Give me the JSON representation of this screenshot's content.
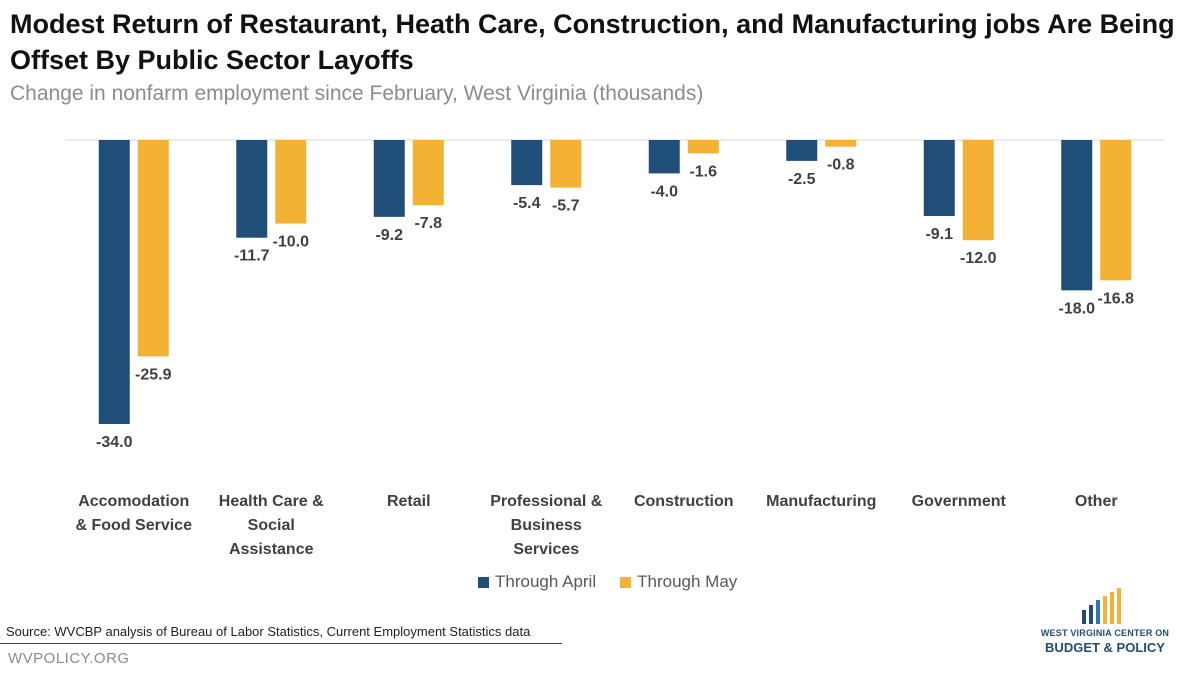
{
  "title": "Modest Return of Restaurant, Heath Care, Construction, and Manufacturing jobs Are Being Offset By Public Sector Layoffs",
  "subtitle": "Change in nonfarm employment since February, West Virginia (thousands)",
  "source": "Source:  WVCBP analysis of Bureau of Labor Statistics, Current Employment  Statistics data",
  "website": "WVPOLICY.ORG",
  "logo": {
    "line1": "WEST VIRGINIA CENTER ON",
    "line2": "BUDGET & POLICY",
    "icon": "rising-bars-logo-icon"
  },
  "colors": {
    "through_april": "#1f4e79",
    "through_may": "#f4b235"
  },
  "legend": {
    "through_april": "Through April",
    "through_may": "Through May"
  },
  "chart_data": {
    "type": "bar",
    "categories": [
      [
        "Accomodation",
        "& Food Service"
      ],
      [
        "Health Care &",
        "Social",
        "Assistance"
      ],
      [
        "Retail"
      ],
      [
        "Professional &",
        "Business",
        "Services"
      ],
      [
        "Construction"
      ],
      [
        "Manufacturing"
      ],
      [
        "Government"
      ],
      [
        "Other"
      ]
    ],
    "series": [
      {
        "name": "Through April",
        "values": [
          -34.0,
          -11.7,
          -9.2,
          -5.4,
          -4.0,
          -2.5,
          -9.1,
          -18.0
        ]
      },
      {
        "name": "Through May",
        "values": [
          -25.9,
          -10.0,
          -7.8,
          -5.7,
          -1.6,
          -0.8,
          -12.0,
          -16.8
        ]
      }
    ],
    "title": "Modest Return of Restaurant, Heath Care, Construction, and Manufacturing jobs Are Being Offset By Public Sector Layoffs",
    "subtitle": "Change in nonfarm employment since February, West Virginia (thousands)",
    "xlabel": "",
    "ylabel": "",
    "ylim": [
      -34.0,
      0
    ],
    "grid": false,
    "legend_position": "bottom",
    "data_labels": true
  }
}
